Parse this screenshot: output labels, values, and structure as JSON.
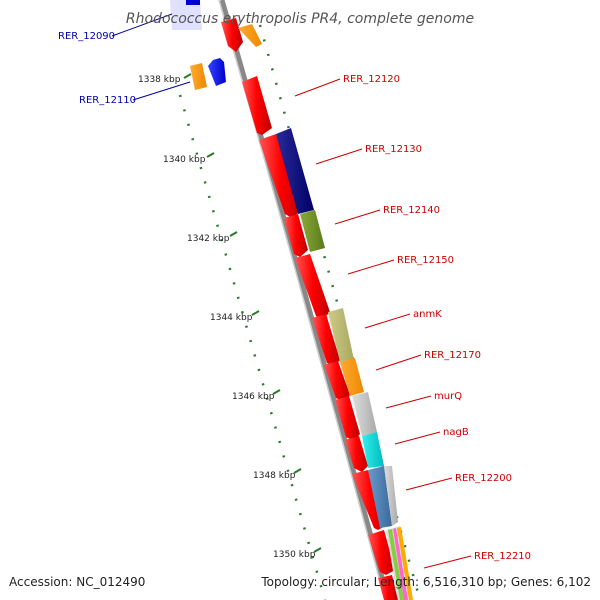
{
  "title": "Rhodococcus erythropolis PR4, complete genome",
  "footer": {
    "accession": "Accession: NC_012490",
    "summary": "Topology: circular; Length: 6,516,310 bp; Genes: 6,102"
  },
  "colors": {
    "forward_label": "#cc0000",
    "reverse_label": "#0000aa",
    "backbone": "#888888",
    "tick": "#2a7a2a",
    "leader": "#cc0000"
  },
  "kbp_ticks": [
    "1338 kbp",
    "1340 kbp",
    "1342 kbp",
    "1344 kbp",
    "1346 kbp",
    "1348 kbp",
    "1350 kbp"
  ],
  "gene_labels": [
    {
      "name": "RER_12090",
      "strand": "reverse"
    },
    {
      "name": "RER_12110",
      "strand": "reverse"
    },
    {
      "name": "RER_12120",
      "strand": "forward"
    },
    {
      "name": "RER_12130",
      "strand": "forward"
    },
    {
      "name": "RER_12140",
      "strand": "forward"
    },
    {
      "name": "RER_12150",
      "strand": "forward"
    },
    {
      "name": "anmK",
      "strand": "forward"
    },
    {
      "name": "RER_12170",
      "strand": "forward"
    },
    {
      "name": "murQ",
      "strand": "forward"
    },
    {
      "name": "nagB",
      "strand": "forward"
    },
    {
      "name": "RER_12200",
      "strand": "forward"
    },
    {
      "name": "RER_12210",
      "strand": "forward"
    }
  ]
}
